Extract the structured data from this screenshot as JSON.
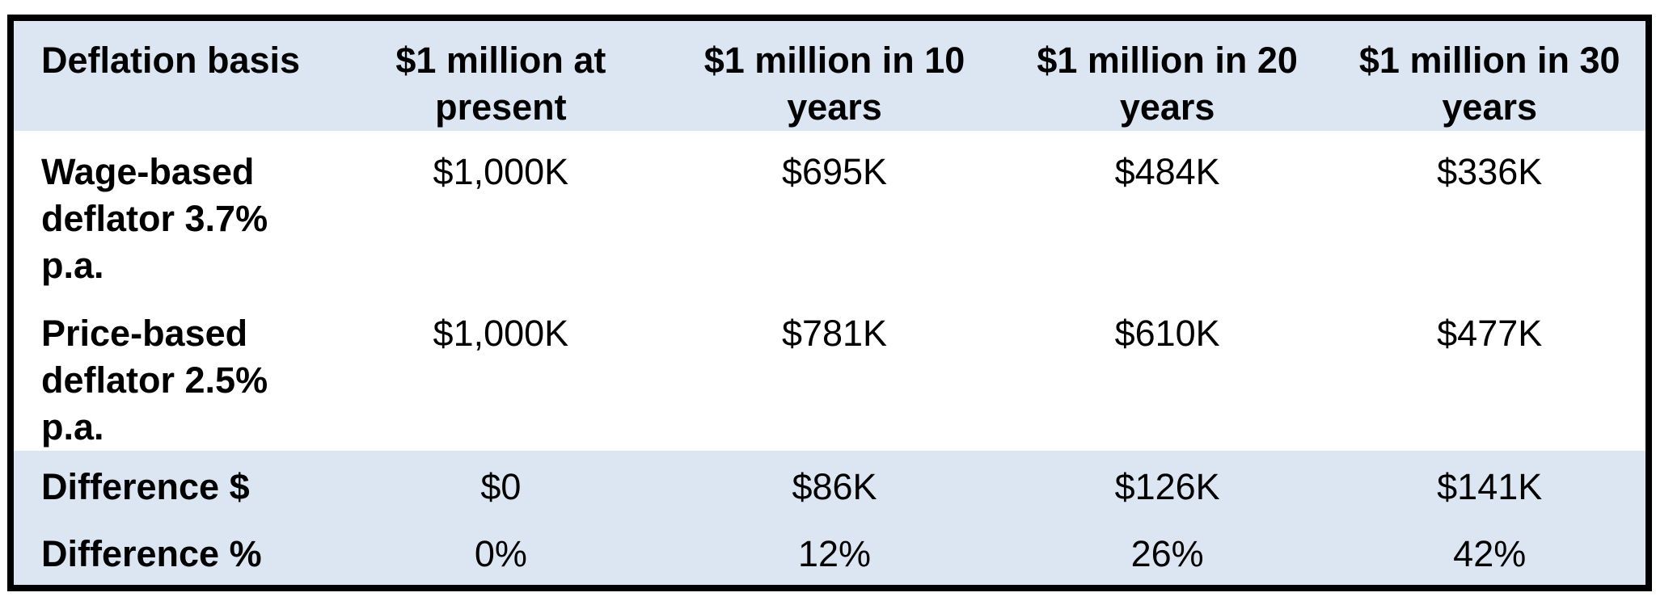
{
  "chart_data": {
    "type": "table",
    "columns": [
      {
        "line1": "Deflation basis",
        "line2": ""
      },
      {
        "line1": "$1 million at",
        "line2": "present"
      },
      {
        "line1": "$1 million in 10",
        "line2": "years"
      },
      {
        "line1": "$1 million in 20",
        "line2": "years"
      },
      {
        "line1": "$1 million in 30",
        "line2": "years"
      }
    ],
    "rows": [
      {
        "label": "Wage-based deflator 3.7% p.a.",
        "values": [
          "$1,000K",
          "$695K",
          "$484K",
          "$336K"
        ]
      },
      {
        "label": "Price-based deflator 2.5% p.a.",
        "values": [
          "$1,000K",
          "$781K",
          "$610K",
          "$477K"
        ]
      },
      {
        "label": "Difference $",
        "values": [
          "$0",
          "$86K",
          "$126K",
          "$141K"
        ]
      },
      {
        "label": "Difference %",
        "values": [
          "0%",
          "12%",
          "26%",
          "42%"
        ]
      }
    ]
  },
  "colors": {
    "band_bg": "#dce6f2",
    "border_color": "#000000",
    "text_color": "#000000",
    "row_bg": "#ffffff"
  }
}
